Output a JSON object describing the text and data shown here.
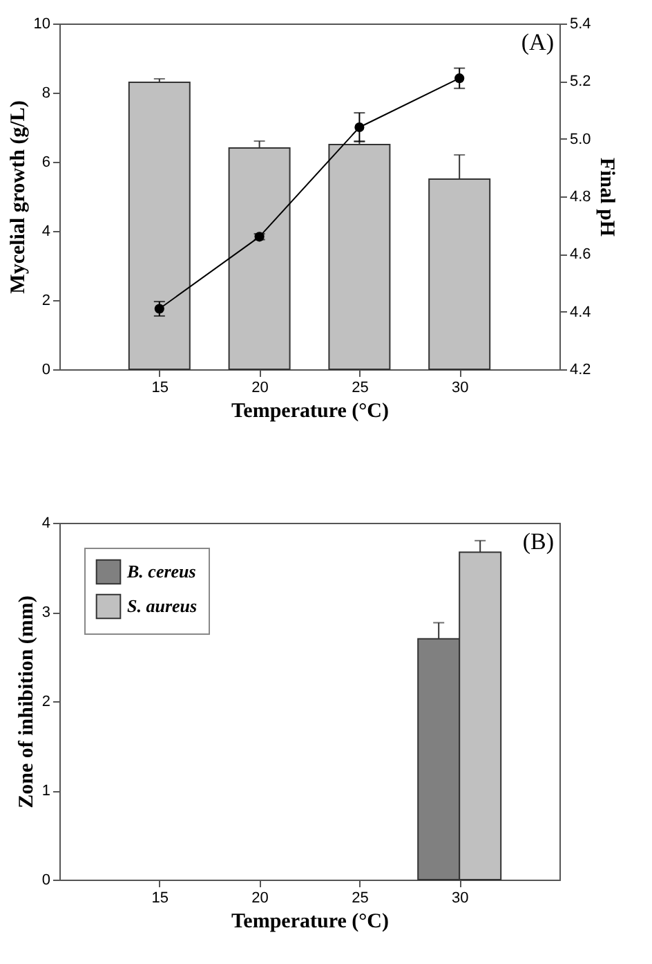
{
  "chart_data": [
    {
      "type": "bar",
      "x": [
        15,
        20,
        25,
        30
      ],
      "xlim": [
        10,
        35
      ],
      "xticks": [
        15,
        20,
        25,
        30
      ],
      "xlabel": "Temperature (°C)",
      "ylabel": "Mycelial growth (g/L)",
      "y2label": "Final pH",
      "ylim": [
        0,
        10
      ],
      "yticks": [
        0,
        2,
        4,
        6,
        8,
        10
      ],
      "y2lim": [
        4.2,
        5.4
      ],
      "y2ticks": [
        4.2,
        4.4,
        4.6,
        4.8,
        {
          "value": 5,
          "label": "5.0"
        },
        5.2,
        5.4
      ],
      "marker": "circle",
      "line_style": "solid",
      "grid": false,
      "legend": false,
      "annotations": [
        "(A)"
      ],
      "series": [
        {
          "type": "bar",
          "color": "#c0c0c0",
          "values": [
            8.3,
            6.4,
            6.5,
            5.5
          ],
          "errors": [
            0.1,
            0.2,
            0.1,
            0.7
          ]
        },
        {
          "type": "line",
          "axis": "y2",
          "color": "#000000",
          "values": [
            4.41,
            4.66,
            5.04,
            5.21
          ],
          "errors": [
            0.025,
            0.01,
            0.05,
            0.035
          ]
        }
      ]
    },
    {
      "type": "bar",
      "x": [
        30
      ],
      "xlim": [
        10,
        35
      ],
      "xticks": [
        15,
        20,
        25,
        30
      ],
      "xlabel": "Temperature (°C)",
      "ylabel": "Zone of inhibition (mm)",
      "ylim": [
        0,
        4
      ],
      "yticks": [
        0,
        1,
        2,
        3,
        4
      ],
      "grid": false,
      "legend": "top left",
      "annotations": [
        "(B)"
      ],
      "series": [
        {
          "name": "B. cereus",
          "color": "#808080",
          "values": [
            2.7
          ],
          "errors": [
            0.18
          ]
        },
        {
          "name": "S. aureus",
          "color": "#c0c0c0",
          "values": [
            3.67
          ],
          "errors": [
            0.13
          ]
        }
      ]
    }
  ]
}
